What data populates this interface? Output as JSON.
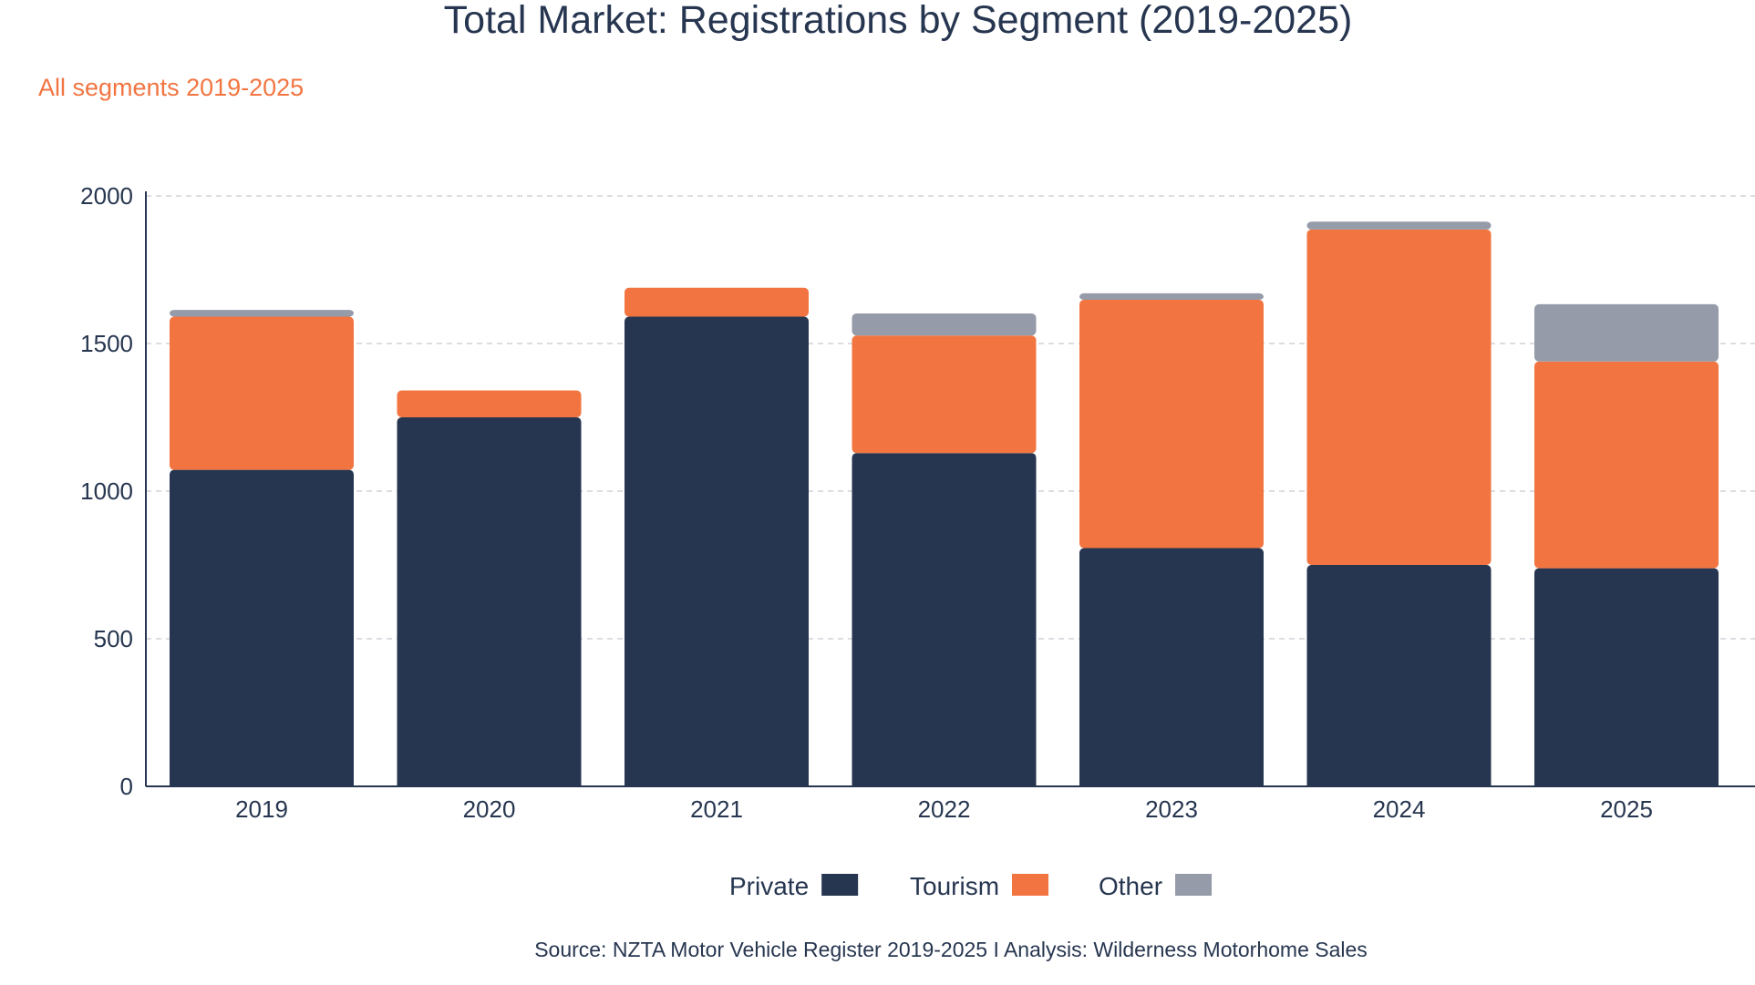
{
  "chart_data": {
    "type": "bar",
    "stacked": true,
    "title": "Total Market: Registrations by Segment (2019-2025)",
    "subtitle": "All segments 2019-2025",
    "xlabel": "",
    "ylabel": "",
    "ylim": [
      0,
      2000
    ],
    "yticks": [
      0,
      500,
      1000,
      1500,
      2000
    ],
    "grid": true,
    "legend_position": "bottom-center",
    "categories": [
      "2019",
      "2020",
      "2021",
      "2022",
      "2023",
      "2024",
      "2025"
    ],
    "series": [
      {
        "name": "Private",
        "color": "#273650",
        "values": [
          1072,
          1250,
          1591,
          1129,
          807,
          750,
          739
        ]
      },
      {
        "name": "Tourism",
        "color": "#f27541",
        "values": [
          519,
          91,
          98,
          398,
          841,
          1136,
          700
        ]
      },
      {
        "name": "Other",
        "color": "#959ba8",
        "values": [
          23,
          0,
          0,
          75,
          22,
          27,
          194
        ]
      }
    ],
    "source": "Source: NZTA Motor Vehicle Register 2019-2025 I Analysis: Wilderness Motorhome Sales"
  }
}
